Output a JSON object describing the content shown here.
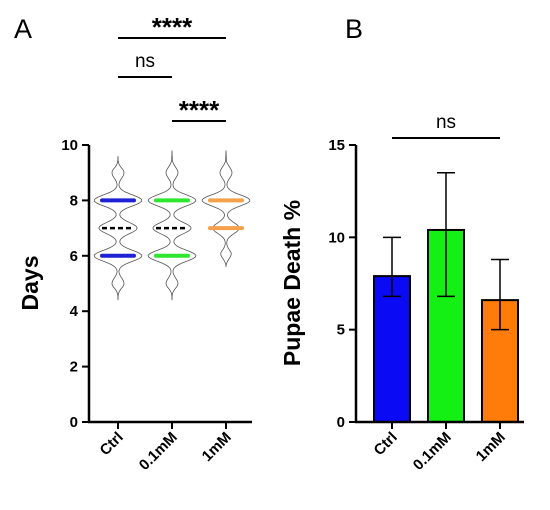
{
  "chart_data": [
    {
      "panel": "A",
      "type": "violin",
      "ylabel": "Days",
      "ylim": [
        0,
        10
      ],
      "yticks": [
        "0",
        "2",
        "4",
        "6",
        "8",
        "10"
      ],
      "categories": [
        "Ctrl",
        "0.1mM",
        "1mM"
      ],
      "series": [
        {
          "category": "Ctrl",
          "color": "#1f22d4",
          "median": 7,
          "q1": 6,
          "q3": 8,
          "min": 4.4,
          "max": 9.6
        },
        {
          "category": "0.1mM",
          "color": "#2ee62e",
          "median": 7,
          "q1": 6,
          "q3": 8,
          "min": 4.4,
          "max": 9.8
        },
        {
          "category": "1mM",
          "color": "#f5a04a",
          "median": 8,
          "q1": 7,
          "q3": 8,
          "min": 5.6,
          "max": 9.8
        }
      ],
      "significance": [
        {
          "from": "Ctrl",
          "to": "1mM",
          "label": "****"
        },
        {
          "from": "Ctrl",
          "to": "0.1mM",
          "label": "ns"
        },
        {
          "from": "0.1mM",
          "to": "1mM",
          "label": "****"
        }
      ]
    },
    {
      "panel": "B",
      "type": "bar",
      "ylabel": "Pupae Death %",
      "ylim": [
        0,
        15
      ],
      "yticks": [
        "0",
        "5",
        "10",
        "15"
      ],
      "categories": [
        "Ctrl",
        "0.1mM",
        "1mM"
      ],
      "values": [
        7.9,
        10.4,
        6.6
      ],
      "error_low": [
        6.8,
        6.8,
        5.0
      ],
      "error_high": [
        10.0,
        13.5,
        8.8
      ],
      "colors": [
        "#0a0af5",
        "#14f014",
        "#ff7b0a"
      ],
      "significance": [
        {
          "from": "Ctrl",
          "to": "1mM",
          "label": "ns"
        }
      ]
    }
  ]
}
